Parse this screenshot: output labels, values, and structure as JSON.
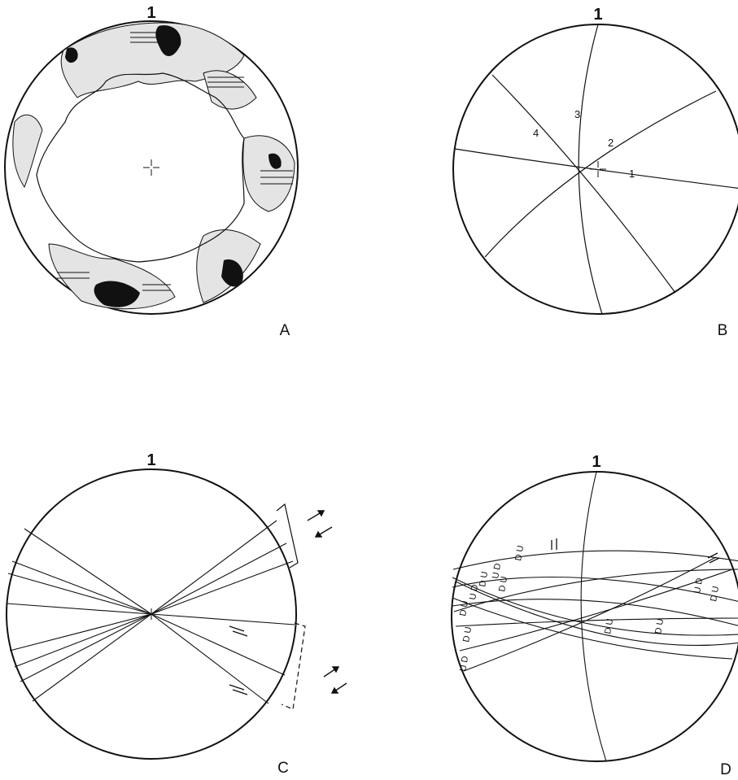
{
  "panels": [
    {
      "letter": "A",
      "north": "1"
    },
    {
      "letter": "B",
      "north": "1",
      "plane_labels": [
        "1",
        "2",
        "3",
        "4"
      ]
    },
    {
      "letter": "C",
      "north": "1"
    },
    {
      "letter": "D",
      "north": "1",
      "sense_labels": [
        "D U",
        "U D",
        "D U",
        "U D",
        "D U",
        "D U",
        "U D",
        "D U",
        "D U",
        "D U",
        "U D",
        "D U",
        "D U",
        "D U"
      ]
    }
  ]
}
